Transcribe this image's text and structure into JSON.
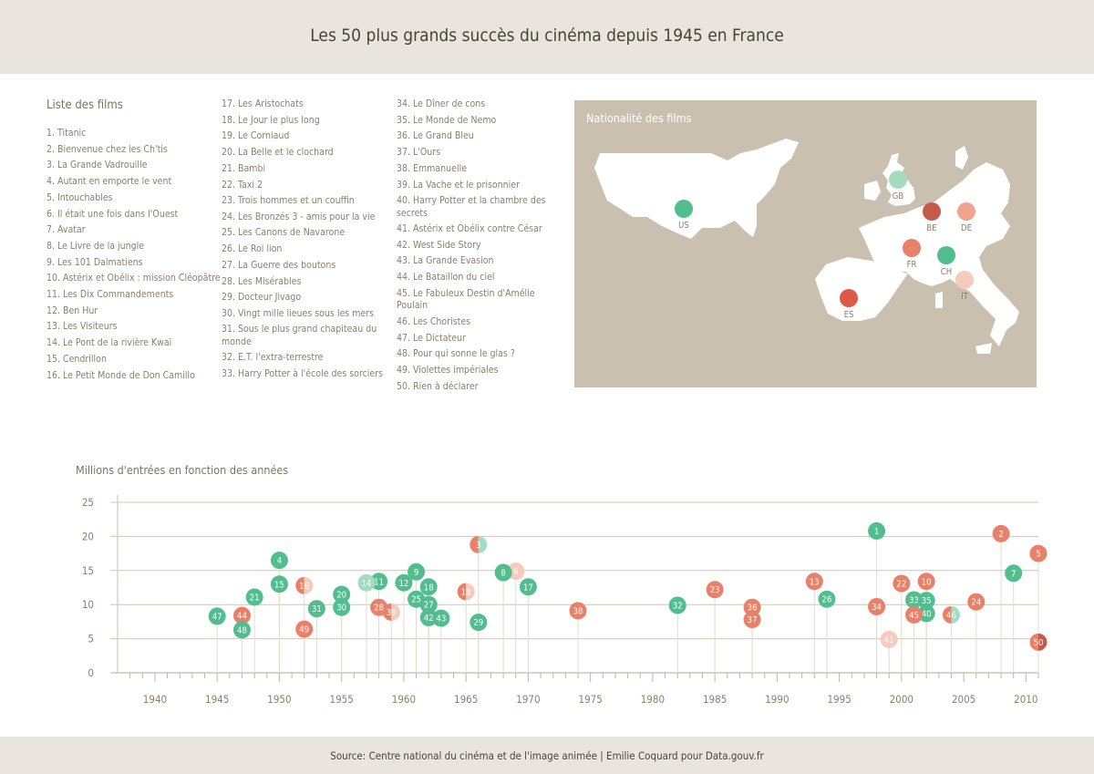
{
  "page": {
    "title": "Les 50 plus grands succès du cinéma depuis 1945 en France",
    "source": "Source: Centre national du cinéma et de l'image animée | Emilie Coquard pour Data.gouv.fr"
  },
  "list": {
    "title": "Liste des films",
    "col1": [
      "1. Titanic",
      "2. Bienvenue chez les Ch'tis",
      "3. La Grande Vadrouille",
      "4. Autant en emporte le vent",
      "5. Intouchables",
      "6. Il était une fois dans l'Ouest",
      "7. Avatar",
      "8. Le Livre de la jungle",
      "9. Les 101 Dalmatiens",
      "10. Astérix et Obélix : mission Cléopâtre",
      "11. Les Dix Commandements",
      "12. Ben Hur",
      "13. Les Visiteurs",
      "14. Le Pont de la rivière Kwaï",
      "15. Cendrillon",
      "16. Le Petit Monde de Don Camillo"
    ],
    "col2": [
      "17. Les Aristochats",
      "18. Le Jour le plus long",
      "19. Le Corniaud",
      "20. La Belle et le clochard",
      "21. Bambi",
      "22. Taxi 2",
      "23. Trois hommes et un couffin",
      "24. Les Bronzés 3 - amis pour la vie",
      "25. Les Canons de Navarone",
      "26. Le Roi lion",
      "27. La Guerre des boutons",
      "28. Les Misérables",
      "29. Docteur Jivago",
      "30. Vingt mille lieues sous les mers",
      "31. Sous le plus grand chapiteau du monde",
      "32. E.T. l'extra-terrestre",
      "33. Harry Potter à l'école des sorciers"
    ],
    "col3": [
      "34. Le Dîner de cons",
      "35. Le Monde de Nemo",
      "36. Le Grand Bleu",
      "37. L'Ours",
      "38. Emmanuelle",
      "39. La Vache et le prisonnier",
      "40. Harry Potter et la chambre des secrets",
      "41. Astérix et Obélix contre César",
      "42. West Side Story",
      "43. La Grande Evasion",
      "44. Le Bataillon du ciel",
      "45. Le Fabuleux Destin d'Amélie Poulain",
      "46. Les Choristes",
      "47. Le Dictateur",
      "48. Pour qui sonne le glas ?",
      "49. Violettes impériales",
      "50. Rien à déclarer"
    ]
  },
  "map": {
    "title": "Nationalité des films",
    "countries": [
      {
        "code": "US",
        "color": "#52bd8e"
      },
      {
        "code": "GB",
        "color": "#a5dbc0"
      },
      {
        "code": "BE",
        "color": "#c45a4a"
      },
      {
        "code": "DE",
        "color": "#eea48d"
      },
      {
        "code": "FR",
        "color": "#e8806a"
      },
      {
        "code": "CH",
        "color": "#52bd8e"
      },
      {
        "code": "IT",
        "color": "#f6cbbd"
      },
      {
        "code": "ES",
        "color": "#dc5b47"
      }
    ]
  },
  "chart_data": {
    "type": "scatter",
    "title": "Millions d'entrées en fonction des années",
    "xlim": [
      1937,
      2011
    ],
    "ylim": [
      0,
      25
    ],
    "x_ticks": [
      1940,
      1945,
      1950,
      1955,
      1960,
      1965,
      1970,
      1975,
      1980,
      1985,
      1990,
      1995,
      2000,
      2005,
      2010
    ],
    "y_ticks": [
      0,
      5,
      10,
      15,
      20,
      25
    ],
    "grid": "horizontal",
    "colors": {
      "US": "#52bd8e",
      "GB": "#a5dbc0",
      "BE": "#c45a4a",
      "DE": "#eea48d",
      "FR": "#e8806a",
      "CH": "#52bd8e",
      "IT": "#f6cbbd",
      "ES": "#dc5b47"
    },
    "points": [
      {
        "rank": "1",
        "year": 1998,
        "value": 20.8,
        "colors": [
          "US"
        ]
      },
      {
        "rank": "2",
        "year": 2008,
        "value": 20.4,
        "colors": [
          "FR"
        ]
      },
      {
        "rank": "3",
        "year": 1966,
        "value": 18.8,
        "colors": [
          "FR",
          "GB"
        ]
      },
      {
        "rank": "4",
        "year": 1950,
        "value": 16.5,
        "colors": [
          "US"
        ]
      },
      {
        "rank": "5",
        "year": 2011,
        "value": 17.5,
        "colors": [
          "FR"
        ]
      },
      {
        "rank": "6",
        "year": 1969,
        "value": 14.9,
        "colors": [
          "IT"
        ]
      },
      {
        "rank": "7",
        "year": 2009,
        "value": 14.6,
        "colors": [
          "US"
        ]
      },
      {
        "rank": "8",
        "year": 1968,
        "value": 14.7,
        "colors": [
          "US"
        ]
      },
      {
        "rank": "9",
        "year": 1961,
        "value": 14.8,
        "colors": [
          "US"
        ]
      },
      {
        "rank": "10",
        "year": 2002,
        "value": 13.4,
        "colors": [
          "FR"
        ]
      },
      {
        "rank": "11",
        "year": 1958,
        "value": 13.4,
        "colors": [
          "US"
        ]
      },
      {
        "rank": "12",
        "year": 1960,
        "value": 13.2,
        "colors": [
          "US"
        ]
      },
      {
        "rank": "13",
        "year": 1993,
        "value": 13.4,
        "colors": [
          "FR"
        ]
      },
      {
        "rank": "14",
        "year": 1957,
        "value": 13.2,
        "colors": [
          "GB"
        ]
      },
      {
        "rank": "15",
        "year": 1950,
        "value": 13.0,
        "colors": [
          "US"
        ]
      },
      {
        "rank": "16",
        "year": 1952,
        "value": 12.8,
        "colors": [
          "FR",
          "IT"
        ]
      },
      {
        "rank": "17",
        "year": 1970,
        "value": 12.6,
        "colors": [
          "US"
        ]
      },
      {
        "rank": "18",
        "year": 1962,
        "value": 12.6,
        "colors": [
          "US"
        ]
      },
      {
        "rank": "19",
        "year": 1965,
        "value": 11.9,
        "colors": [
          "FR",
          "IT"
        ]
      },
      {
        "rank": "20",
        "year": 1955,
        "value": 11.5,
        "colors": [
          "US"
        ]
      },
      {
        "rank": "21",
        "year": 1948,
        "value": 11.1,
        "colors": [
          "US"
        ]
      },
      {
        "rank": "22",
        "year": 2000,
        "value": 13.1,
        "colors": [
          "FR"
        ]
      },
      {
        "rank": "23",
        "year": 1985,
        "value": 12.2,
        "colors": [
          "FR"
        ]
      },
      {
        "rank": "24",
        "year": 2006,
        "value": 10.4,
        "colors": [
          "FR"
        ]
      },
      {
        "rank": "25",
        "year": 1961,
        "value": 10.8,
        "colors": [
          "US"
        ]
      },
      {
        "rank": "26",
        "year": 1994,
        "value": 10.8,
        "colors": [
          "US"
        ]
      },
      {
        "rank": "27",
        "year": 1962,
        "value": 10.0,
        "colors": [
          "US"
        ]
      },
      {
        "rank": "28",
        "year": 1958,
        "value": 9.6,
        "colors": [
          "FR"
        ]
      },
      {
        "rank": "29",
        "year": 1966,
        "value": 7.4,
        "colors": [
          "US"
        ]
      },
      {
        "rank": "30",
        "year": 1955,
        "value": 9.6,
        "colors": [
          "US"
        ]
      },
      {
        "rank": "31",
        "year": 1953,
        "value": 9.4,
        "colors": [
          "US"
        ]
      },
      {
        "rank": "32",
        "year": 1982,
        "value": 9.9,
        "colors": [
          "US"
        ]
      },
      {
        "rank": "33",
        "year": 2001,
        "value": 10.7,
        "colors": [
          "US"
        ]
      },
      {
        "rank": "34",
        "year": 1998,
        "value": 9.7,
        "colors": [
          "FR"
        ]
      },
      {
        "rank": "35",
        "year": 2002,
        "value": 10.6,
        "colors": [
          "US"
        ]
      },
      {
        "rank": "36",
        "year": 1988,
        "value": 9.6,
        "colors": [
          "FR"
        ]
      },
      {
        "rank": "37",
        "year": 1988,
        "value": 7.8,
        "colors": [
          "FR"
        ]
      },
      {
        "rank": "38",
        "year": 1974,
        "value": 9.1,
        "colors": [
          "FR"
        ]
      },
      {
        "rank": "39",
        "year": 1959,
        "value": 8.9,
        "colors": [
          "FR",
          "IT"
        ]
      },
      {
        "rank": "40",
        "year": 2002,
        "value": 8.7,
        "colors": [
          "US"
        ]
      },
      {
        "rank": "41",
        "year": 1999,
        "value": 4.9,
        "colors": [
          "IT"
        ]
      },
      {
        "rank": "42",
        "year": 1962,
        "value": 8.1,
        "colors": [
          "US"
        ]
      },
      {
        "rank": "43",
        "year": 1963,
        "value": 8.0,
        "colors": [
          "US"
        ]
      },
      {
        "rank": "44",
        "year": 1947,
        "value": 8.4,
        "colors": [
          "FR"
        ]
      },
      {
        "rank": "45",
        "year": 2001,
        "value": 8.5,
        "colors": [
          "FR"
        ]
      },
      {
        "rank": "46",
        "year": 2004,
        "value": 8.5,
        "colors": [
          "FR",
          "GB"
        ]
      },
      {
        "rank": "47",
        "year": 1945,
        "value": 8.3,
        "colors": [
          "US"
        ]
      },
      {
        "rank": "48",
        "year": 1947,
        "value": 6.3,
        "colors": [
          "US"
        ]
      },
      {
        "rank": "49",
        "year": 1952,
        "value": 6.4,
        "colors": [
          "FR"
        ]
      },
      {
        "rank": "50",
        "year": 2011,
        "value": 4.5,
        "colors": [
          "FR",
          "BE"
        ]
      }
    ]
  }
}
